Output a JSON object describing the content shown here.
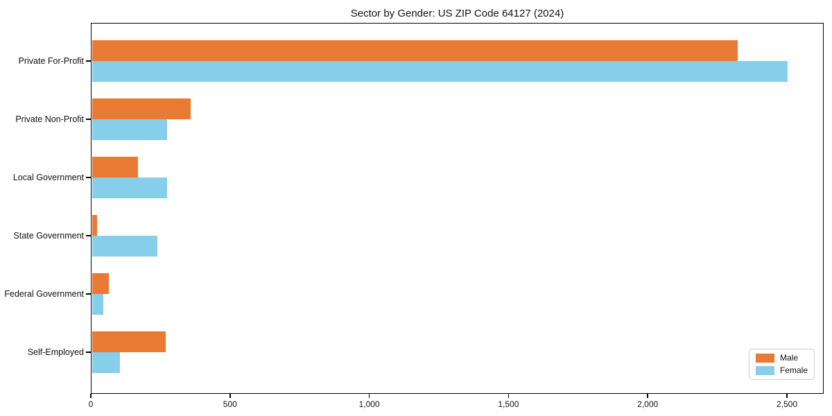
{
  "chart_data": {
    "type": "bar",
    "orientation": "horizontal",
    "title": "Sector by Gender: US ZIP Code 64127 (2024)",
    "categories": [
      "Private For-Profit",
      "Private Non-Profit",
      "Local Government",
      "State Government",
      "Federal Government",
      "Self-Employed"
    ],
    "series": [
      {
        "name": "Male",
        "color": "#e87a33",
        "values": [
          2320,
          355,
          165,
          18,
          60,
          265
        ]
      },
      {
        "name": "Female",
        "color": "#87ceeb",
        "values": [
          2500,
          270,
          270,
          235,
          40,
          100
        ]
      }
    ],
    "xlabel": "",
    "ylabel": "",
    "xlim": [
      0,
      2632
    ],
    "x_ticks": [
      0,
      500,
      1000,
      1500,
      2000,
      2500
    ],
    "x_tick_labels": [
      "0",
      "500",
      "1,000",
      "1,500",
      "2,000",
      "2,500"
    ],
    "grid": false,
    "legend_position": "lower right",
    "axes": {
      "spine_color": "#000000",
      "background": "#ffffff"
    }
  }
}
